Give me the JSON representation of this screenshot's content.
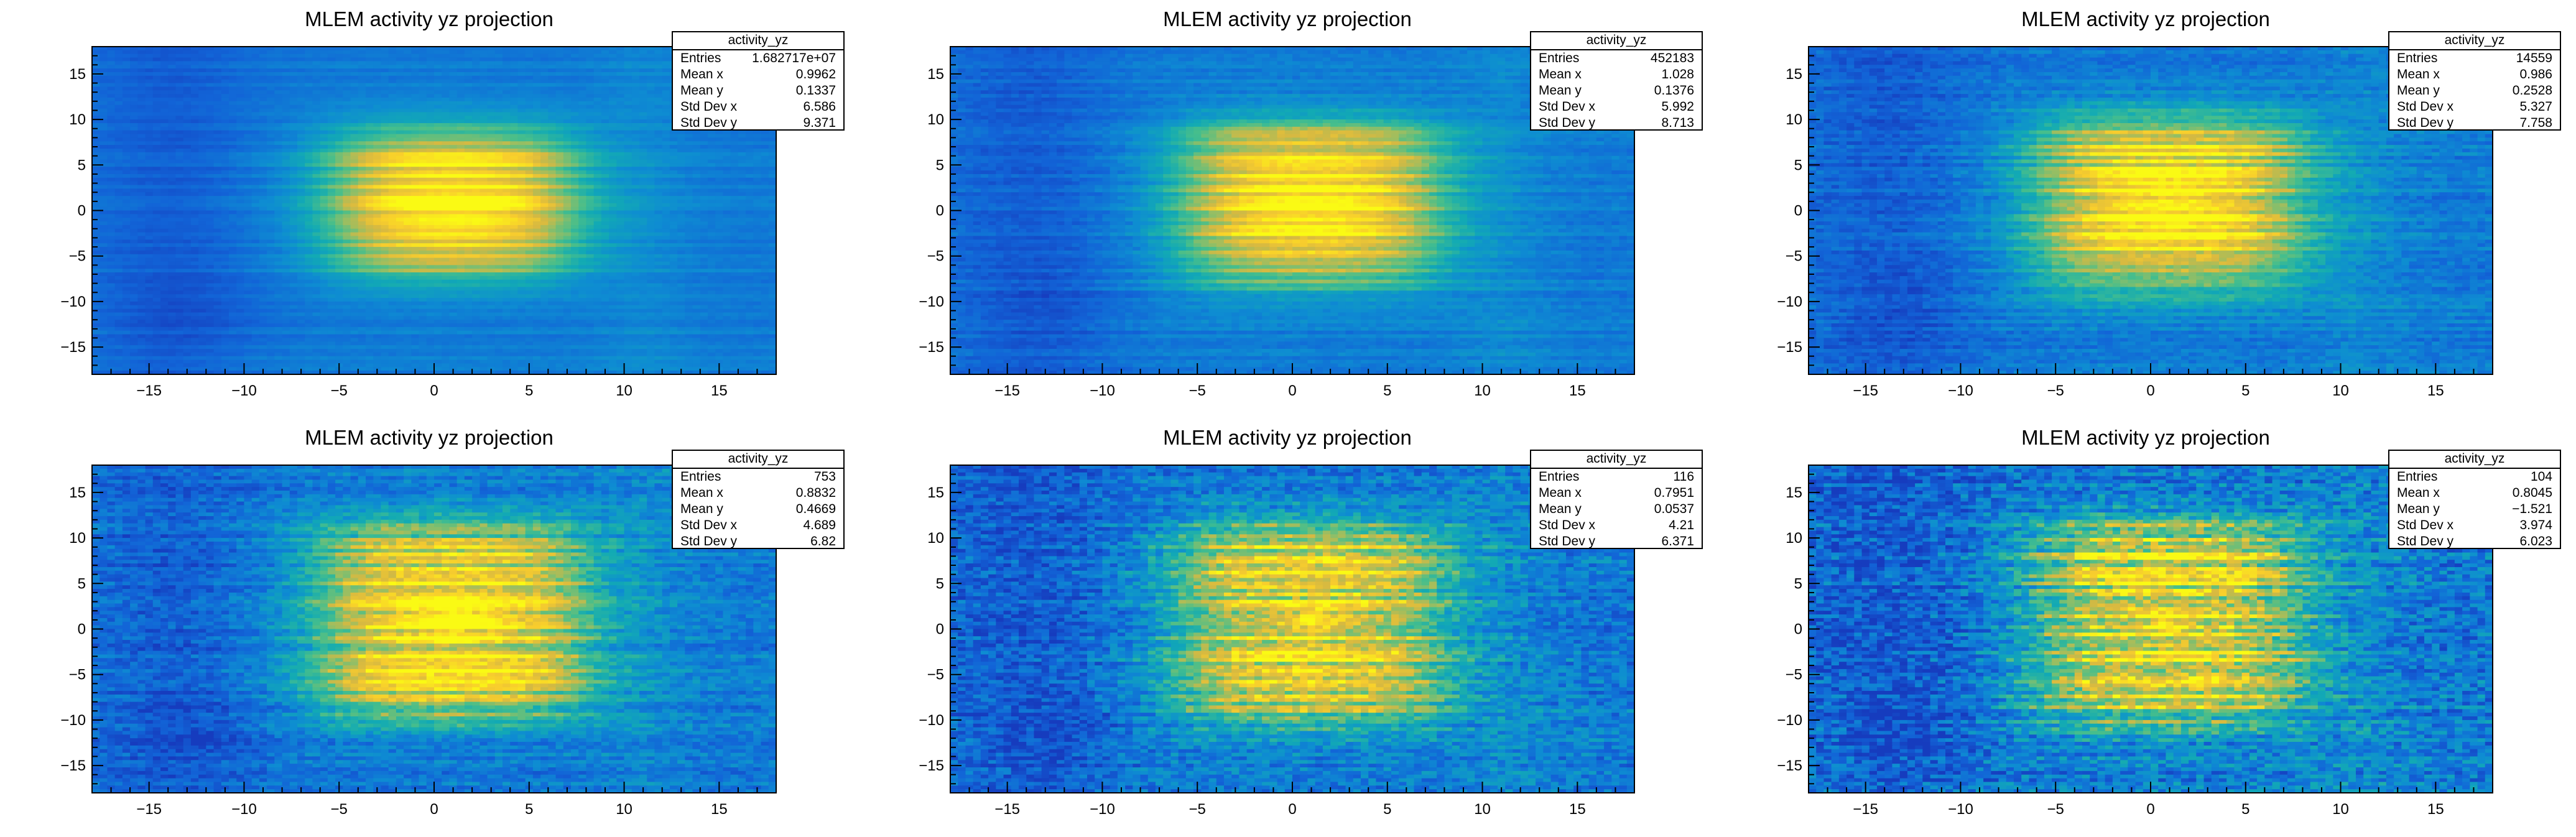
{
  "chart_data": [
    {
      "type": "heatmap",
      "title": "MLEM activity yz projection",
      "xlabel": "",
      "ylabel": "",
      "xlim": [
        -18,
        18
      ],
      "ylim": [
        -18,
        18
      ],
      "xticks": [
        -15,
        -10,
        -5,
        0,
        5,
        10,
        15
      ],
      "yticks": [
        -15,
        -10,
        -5,
        0,
        5,
        10,
        15
      ],
      "xtick_labels": [
        "−15",
        "−10",
        "−5",
        "0",
        "5",
        "10",
        "15"
      ],
      "ytick_labels": [
        "−15",
        "−10",
        "−5",
        "0",
        "5",
        "10",
        "15"
      ],
      "colormap": "kBird",
      "grid": false,
      "stats": {
        "name": "activity_yz",
        "rows": [
          {
            "label": "Entries",
            "value": "1.682717e+07"
          },
          {
            "label": "Mean x",
            "value": "0.9962"
          },
          {
            "label": "Mean y",
            "value": "0.1337"
          },
          {
            "label": "Std Dev x",
            "value": "6.586"
          },
          {
            "label": "Std Dev y",
            "value": "9.371"
          }
        ]
      }
    },
    {
      "type": "heatmap",
      "title": "MLEM activity yz projection",
      "xlabel": "",
      "ylabel": "",
      "xlim": [
        -18,
        18
      ],
      "ylim": [
        -18,
        18
      ],
      "xticks": [
        -15,
        -10,
        -5,
        0,
        5,
        10,
        15
      ],
      "yticks": [
        -15,
        -10,
        -5,
        0,
        5,
        10,
        15
      ],
      "xtick_labels": [
        "−15",
        "−10",
        "−5",
        "0",
        "5",
        "10",
        "15"
      ],
      "ytick_labels": [
        "−15",
        "−10",
        "−5",
        "0",
        "5",
        "10",
        "15"
      ],
      "colormap": "kBird",
      "grid": false,
      "stats": {
        "name": "activity_yz",
        "rows": [
          {
            "label": "Entries",
            "value": "452183"
          },
          {
            "label": "Mean x",
            "value": "1.028"
          },
          {
            "label": "Mean y",
            "value": "0.1376"
          },
          {
            "label": "Std Dev x",
            "value": "5.992"
          },
          {
            "label": "Std Dev y",
            "value": "8.713"
          }
        ]
      }
    },
    {
      "type": "heatmap",
      "title": "MLEM activity yz projection",
      "xlabel": "",
      "ylabel": "",
      "xlim": [
        -18,
        18
      ],
      "ylim": [
        -18,
        18
      ],
      "xticks": [
        -15,
        -10,
        -5,
        0,
        5,
        10,
        15
      ],
      "yticks": [
        -15,
        -10,
        -5,
        0,
        5,
        10,
        15
      ],
      "xtick_labels": [
        "−15",
        "−10",
        "−5",
        "0",
        "5",
        "10",
        "15"
      ],
      "ytick_labels": [
        "−15",
        "−10",
        "−5",
        "0",
        "5",
        "10",
        "15"
      ],
      "colormap": "kBird",
      "grid": false,
      "stats": {
        "name": "activity_yz",
        "rows": [
          {
            "label": "Entries",
            "value": "14559"
          },
          {
            "label": "Mean x",
            "value": "0.986"
          },
          {
            "label": "Mean y",
            "value": "0.2528"
          },
          {
            "label": "Std Dev x",
            "value": "5.327"
          },
          {
            "label": "Std Dev y",
            "value": "7.758"
          }
        ]
      }
    },
    {
      "type": "heatmap",
      "title": "MLEM activity yz projection",
      "xlabel": "",
      "ylabel": "",
      "xlim": [
        -18,
        18
      ],
      "ylim": [
        -18,
        18
      ],
      "xticks": [
        -15,
        -10,
        -5,
        0,
        5,
        10,
        15
      ],
      "yticks": [
        -15,
        -10,
        -5,
        0,
        5,
        10,
        15
      ],
      "xtick_labels": [
        "−15",
        "−10",
        "−5",
        "0",
        "5",
        "10",
        "15"
      ],
      "ytick_labels": [
        "−15",
        "−10",
        "−5",
        "0",
        "5",
        "10",
        "15"
      ],
      "colormap": "kBird",
      "grid": false,
      "stats": {
        "name": "activity_yz",
        "rows": [
          {
            "label": "Entries",
            "value": "753"
          },
          {
            "label": "Mean x",
            "value": "0.8832"
          },
          {
            "label": "Mean y",
            "value": "0.4669"
          },
          {
            "label": "Std Dev x",
            "value": "4.689"
          },
          {
            "label": "Std Dev y",
            "value": "6.82"
          }
        ]
      }
    },
    {
      "type": "heatmap",
      "title": "MLEM activity yz projection",
      "xlabel": "",
      "ylabel": "",
      "xlim": [
        -18,
        18
      ],
      "ylim": [
        -18,
        18
      ],
      "xticks": [
        -15,
        -10,
        -5,
        0,
        5,
        10,
        15
      ],
      "yticks": [
        -15,
        -10,
        -5,
        0,
        5,
        10,
        15
      ],
      "xtick_labels": [
        "−15",
        "−10",
        "−5",
        "0",
        "5",
        "10",
        "15"
      ],
      "ytick_labels": [
        "−15",
        "−10",
        "−5",
        "0",
        "5",
        "10",
        "15"
      ],
      "colormap": "kBird",
      "grid": false,
      "stats": {
        "name": "activity_yz",
        "rows": [
          {
            "label": "Entries",
            "value": "116"
          },
          {
            "label": "Mean x",
            "value": "0.7951"
          },
          {
            "label": "Mean y",
            "value": "0.0537"
          },
          {
            "label": "Std Dev x",
            "value": "4.21"
          },
          {
            "label": "Std Dev y",
            "value": "6.371"
          }
        ]
      }
    },
    {
      "type": "heatmap",
      "title": "MLEM activity yz projection",
      "xlabel": "",
      "ylabel": "",
      "xlim": [
        -18,
        18
      ],
      "ylim": [
        -18,
        18
      ],
      "xticks": [
        -15,
        -10,
        -5,
        0,
        5,
        10,
        15
      ],
      "yticks": [
        -15,
        -10,
        -5,
        0,
        5,
        10,
        15
      ],
      "xtick_labels": [
        "−15",
        "−10",
        "−5",
        "0",
        "5",
        "10",
        "15"
      ],
      "ytick_labels": [
        "−15",
        "−10",
        "−5",
        "0",
        "5",
        "10",
        "15"
      ],
      "colormap": "kBird",
      "grid": false,
      "stats": {
        "name": "activity_yz",
        "rows": [
          {
            "label": "Entries",
            "value": "104"
          },
          {
            "label": "Mean x",
            "value": "0.8045"
          },
          {
            "label": "Mean y",
            "value": "−1.521"
          },
          {
            "label": "Std Dev x",
            "value": "3.974"
          },
          {
            "label": "Std Dev y",
            "value": "6.023"
          }
        ]
      }
    }
  ]
}
